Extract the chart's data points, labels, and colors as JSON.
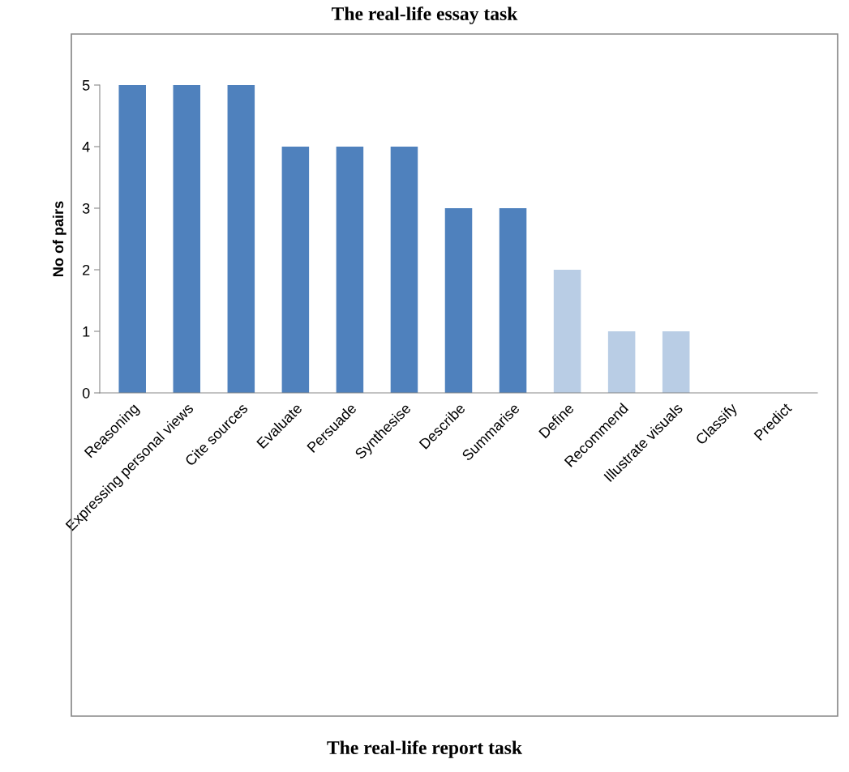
{
  "chart_data": {
    "type": "bar",
    "title": "The real-life essay task",
    "ylabel": "No of pairs",
    "categories": [
      "Reasoning",
      "Expressing personal views",
      "Cite sources",
      "Evaluate",
      "Persuade",
      "Synthesise",
      "Describe",
      "Summarise",
      "Define",
      "Recommend",
      "Illustrate visuals",
      "Classify",
      "Predict"
    ],
    "values": [
      5,
      5,
      5,
      4,
      4,
      4,
      3,
      3,
      2,
      1,
      1,
      0,
      0
    ],
    "colors": [
      "#4f81bd",
      "#4f81bd",
      "#4f81bd",
      "#4f81bd",
      "#4f81bd",
      "#4f81bd",
      "#4f81bd",
      "#4f81bd",
      "#b9cde5",
      "#b9cde5",
      "#b9cde5",
      "#b9cde5",
      "#b9cde5"
    ],
    "ylim": [
      0,
      5
    ],
    "yticks": [
      0,
      1,
      2,
      3,
      4,
      5
    ],
    "grid": false,
    "legend": false,
    "annotations": [
      "The real-life report task"
    ]
  }
}
